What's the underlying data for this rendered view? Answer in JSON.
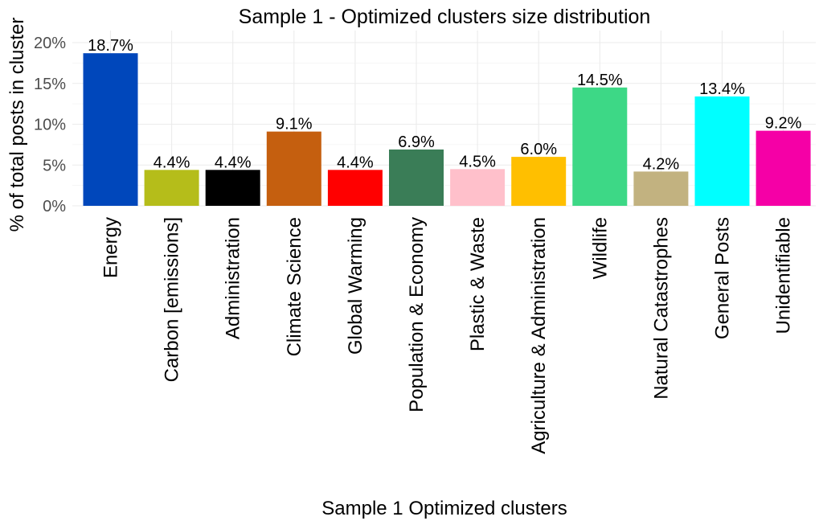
{
  "chart_data": {
    "type": "bar",
    "title": "Sample 1 - Optimized clusters size distribution",
    "xlabel": "Sample 1 Optimized clusters",
    "ylabel": "% of total posts in cluster",
    "ylim": [
      0,
      21
    ],
    "yticks": [
      0,
      5,
      10,
      15,
      20
    ],
    "ytick_labels": [
      "0%",
      "5%",
      "10%",
      "15%",
      "20%"
    ],
    "grid": true,
    "categories": [
      "Energy",
      "Carbon [emissions]",
      "Administration",
      "Climate Science",
      "Global Warming",
      "Population & Economy",
      "Plastic & Waste",
      "Agriculture  & Administration",
      "Wildlife",
      "Natural Catastrophes",
      "General Posts",
      "Unidentifiable"
    ],
    "values": [
      18.7,
      4.4,
      4.4,
      9.1,
      4.4,
      6.9,
      4.5,
      6.0,
      14.5,
      4.2,
      13.4,
      9.2
    ],
    "labels": [
      "18.7%",
      "4.4%",
      "4.4%",
      "9.1%",
      "4.4%",
      "6.9%",
      "4.5%",
      "6.0%",
      "14.5%",
      "4.2%",
      "13.4%",
      "9.2%"
    ],
    "colors": [
      "#0047BB",
      "#B5BD1A",
      "#000000",
      "#C55F0F",
      "#FF0000",
      "#3A7D57",
      "#FFC0CB",
      "#FFBF00",
      "#3DD886",
      "#C2B280",
      "#00FFFF",
      "#F500A6"
    ]
  }
}
